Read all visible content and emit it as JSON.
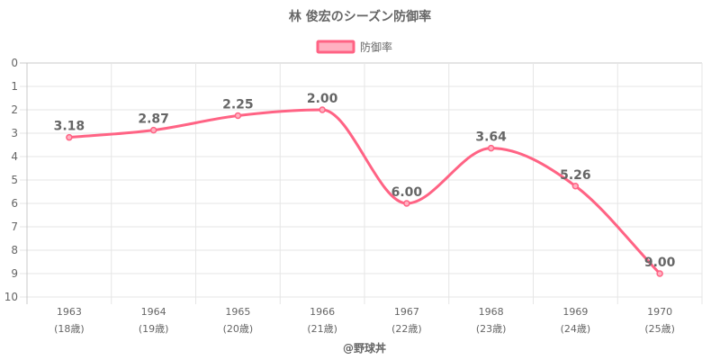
{
  "chart_data": {
    "type": "line",
    "title": "林 俊宏のシーズン防御率",
    "x": [
      "1963",
      "1964",
      "1965",
      "1966",
      "1967",
      "1968",
      "1969",
      "1970"
    ],
    "x_sub": [
      "(18歳)",
      "(19歳)",
      "(20歳)",
      "(21歳)",
      "(22歳)",
      "(23歳)",
      "(24歳)",
      "(25歳)"
    ],
    "series": [
      {
        "name": "防御率",
        "values": [
          3.18,
          2.87,
          2.25,
          2.0,
          6.0,
          3.64,
          5.26,
          9.0
        ],
        "labels": [
          "3.18",
          "2.87",
          "2.25",
          "2.00",
          "6.00",
          "3.64",
          "5.26",
          "9.00"
        ]
      }
    ],
    "y_ticks": [
      "0",
      "1",
      "2",
      "3",
      "4",
      "5",
      "6",
      "7",
      "8",
      "9",
      "10"
    ],
    "ylim": [
      0,
      10
    ],
    "y_reversed": true,
    "xlabel": "@野球丼",
    "ylabel": "",
    "grid": true,
    "legend": "top",
    "colors": {
      "line": "#ff6384",
      "fill": "#ffb1c1"
    }
  }
}
